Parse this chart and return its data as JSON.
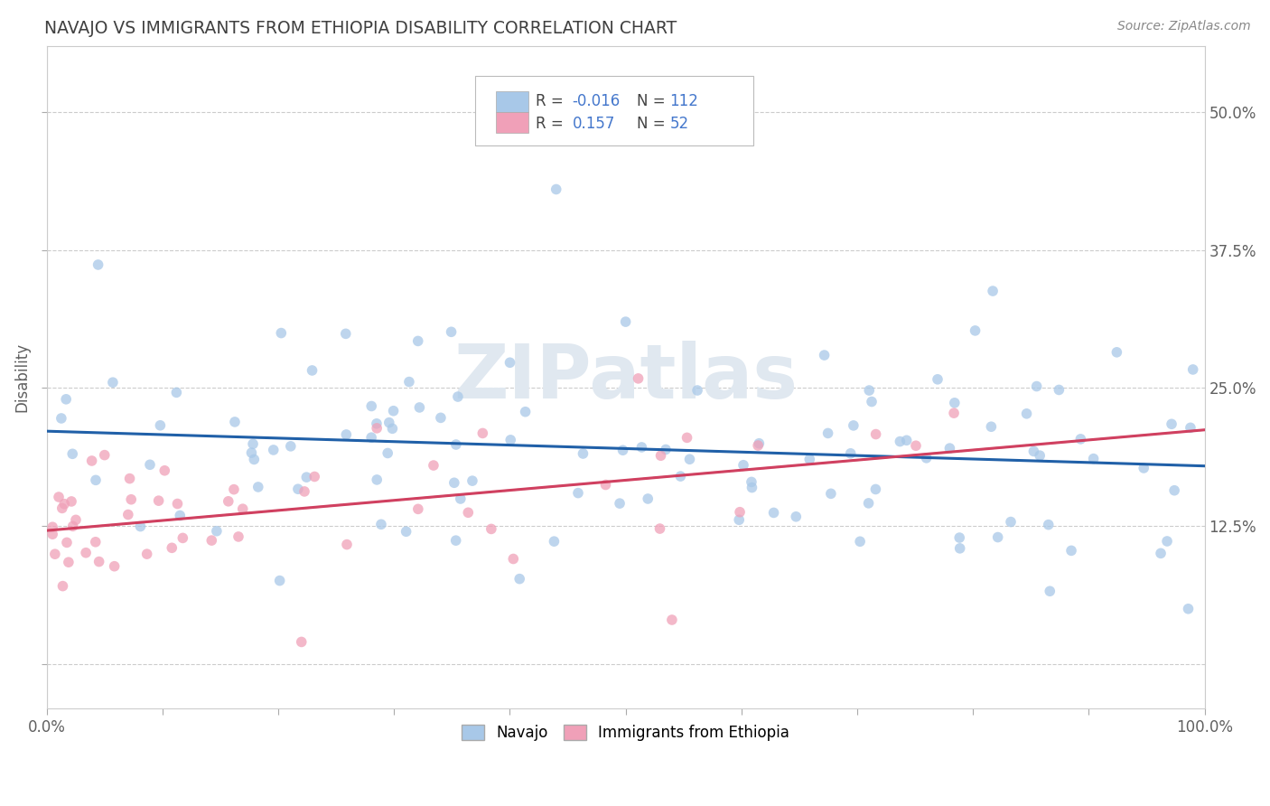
{
  "title": "NAVAJO VS IMMIGRANTS FROM ETHIOPIA DISABILITY CORRELATION CHART",
  "source": "Source: ZipAtlas.com",
  "ylabel": "Disability",
  "xlim": [
    0.0,
    1.0
  ],
  "ylim": [
    -0.04,
    0.56
  ],
  "x_ticks": [
    0.0,
    0.1,
    0.2,
    0.3,
    0.4,
    0.5,
    0.6,
    0.7,
    0.8,
    0.9,
    1.0
  ],
  "x_tick_labels": [
    "0.0%",
    "",
    "",
    "",
    "",
    "",
    "",
    "",
    "",
    "",
    "100.0%"
  ],
  "y_ticks": [
    0.0,
    0.125,
    0.25,
    0.375,
    0.5
  ],
  "y_tick_labels_right": [
    "",
    "12.5%",
    "25.0%",
    "37.5%",
    "50.0%"
  ],
  "navajo_R": -0.016,
  "navajo_N": 112,
  "ethiopia_R": 0.157,
  "ethiopia_N": 52,
  "navajo_color": "#a8c8e8",
  "ethiopia_color": "#f0a0b8",
  "navajo_line_color": "#2060a8",
  "ethiopia_line_color": "#d04060",
  "background_color": "#ffffff",
  "grid_color": "#cccccc",
  "watermark": "ZIPatlas",
  "legend_color_blue": "#4477cc",
  "title_color": "#404040",
  "ylabel_color": "#606060",
  "tick_color": "#606060"
}
